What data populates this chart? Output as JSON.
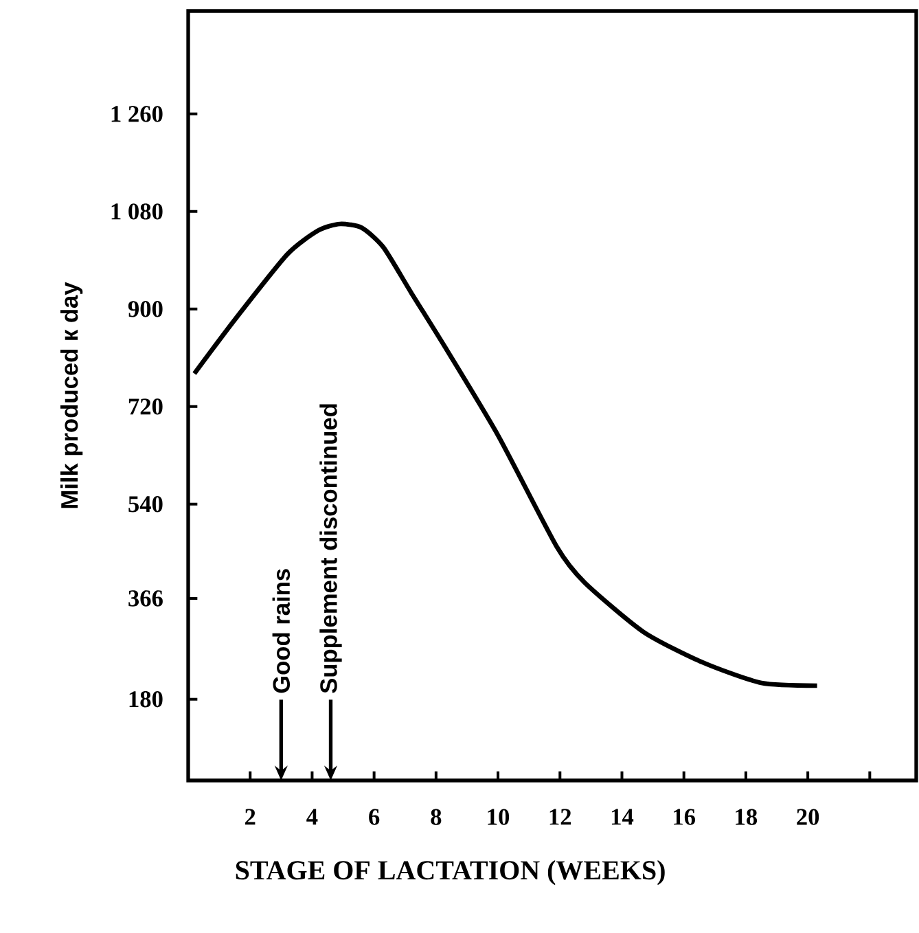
{
  "chart_data": {
    "type": "line",
    "xlabel": "STAGE OF LACTATION (WEEKS)",
    "ylabel": "Milk produced к day",
    "x": [
      0.2,
      1.5,
      3.2,
      4.2,
      4.9,
      5.6,
      6.3,
      7.2,
      8.3,
      10.0,
      11.9,
      12.8,
      14.7,
      16.6,
      18.5,
      20.3
    ],
    "series": [
      {
        "color": "#000000",
        "values": [
          781,
          880,
          1001,
          1045,
          1057,
          1050,
          1014,
          930,
          829,
          667,
          461,
          395,
          304,
          248,
          210,
          205
        ]
      }
    ],
    "xlim": [
      0,
      23.5
    ],
    "ylim": [
      30,
      1450
    ],
    "xticks": [
      2,
      4,
      6,
      8,
      10,
      12,
      14,
      16,
      18,
      20,
      {
        "value": 22,
        "label": null
      }
    ],
    "yticks": [
      180,
      366,
      540,
      720,
      900,
      {
        "value": 1080,
        "label": "1 080"
      },
      {
        "value": 1260,
        "label": "1 260"
      }
    ],
    "ref_lines": [
      {
        "axis": "x",
        "value": 3.0,
        "label": "Good rains"
      },
      {
        "axis": "x",
        "value": 4.6,
        "label": "Supplement discontinued"
      }
    ],
    "grid": false,
    "marker": "none",
    "line_style": "solid"
  }
}
